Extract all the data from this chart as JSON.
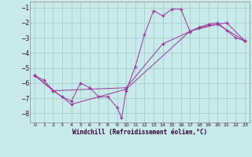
{
  "title": "",
  "xlabel": "Windchill (Refroidissement éolien,°C)",
  "background_color": "#c8eaea",
  "grid_color": "#a8cccc",
  "line_color": "#993399",
  "marker": "+",
  "xlim": [
    -0.5,
    23.5
  ],
  "ylim": [
    -8.6,
    -0.6
  ],
  "xticks": [
    0,
    1,
    2,
    3,
    4,
    5,
    6,
    7,
    8,
    9,
    10,
    11,
    12,
    13,
    14,
    15,
    16,
    17,
    18,
    19,
    20,
    21,
    22,
    23
  ],
  "yticks": [
    -8,
    -7,
    -6,
    -5,
    -4,
    -3,
    -2,
    -1
  ],
  "series1": [
    [
      0,
      -5.5
    ],
    [
      1,
      -5.8
    ],
    [
      2,
      -6.5
    ],
    [
      3,
      -6.9
    ],
    [
      4,
      -7.2
    ],
    [
      5,
      -6.0
    ],
    [
      6,
      -6.3
    ],
    [
      7,
      -6.9
    ],
    [
      8,
      -6.9
    ],
    [
      9,
      -7.6
    ],
    [
      9.5,
      -8.3
    ],
    [
      10,
      -6.5
    ],
    [
      11,
      -4.9
    ],
    [
      12,
      -2.8
    ],
    [
      13,
      -1.2
    ],
    [
      14,
      -1.55
    ],
    [
      15,
      -1.1
    ],
    [
      16,
      -1.1
    ],
    [
      17,
      -2.6
    ],
    [
      18,
      -2.3
    ],
    [
      19,
      -2.1
    ],
    [
      20,
      -2.0
    ],
    [
      21,
      -2.5
    ],
    [
      22,
      -3.0
    ],
    [
      23,
      -3.2
    ]
  ],
  "series2": [
    [
      0,
      -5.5
    ],
    [
      4,
      -7.4
    ],
    [
      10,
      -6.4
    ],
    [
      17,
      -2.55
    ],
    [
      20,
      -2.1
    ],
    [
      23,
      -3.2
    ]
  ],
  "series3": [
    [
      0,
      -5.5
    ],
    [
      2,
      -6.5
    ],
    [
      10,
      -6.3
    ],
    [
      14,
      -3.4
    ],
    [
      18,
      -2.3
    ],
    [
      21,
      -2.0
    ],
    [
      23,
      -3.2
    ]
  ]
}
